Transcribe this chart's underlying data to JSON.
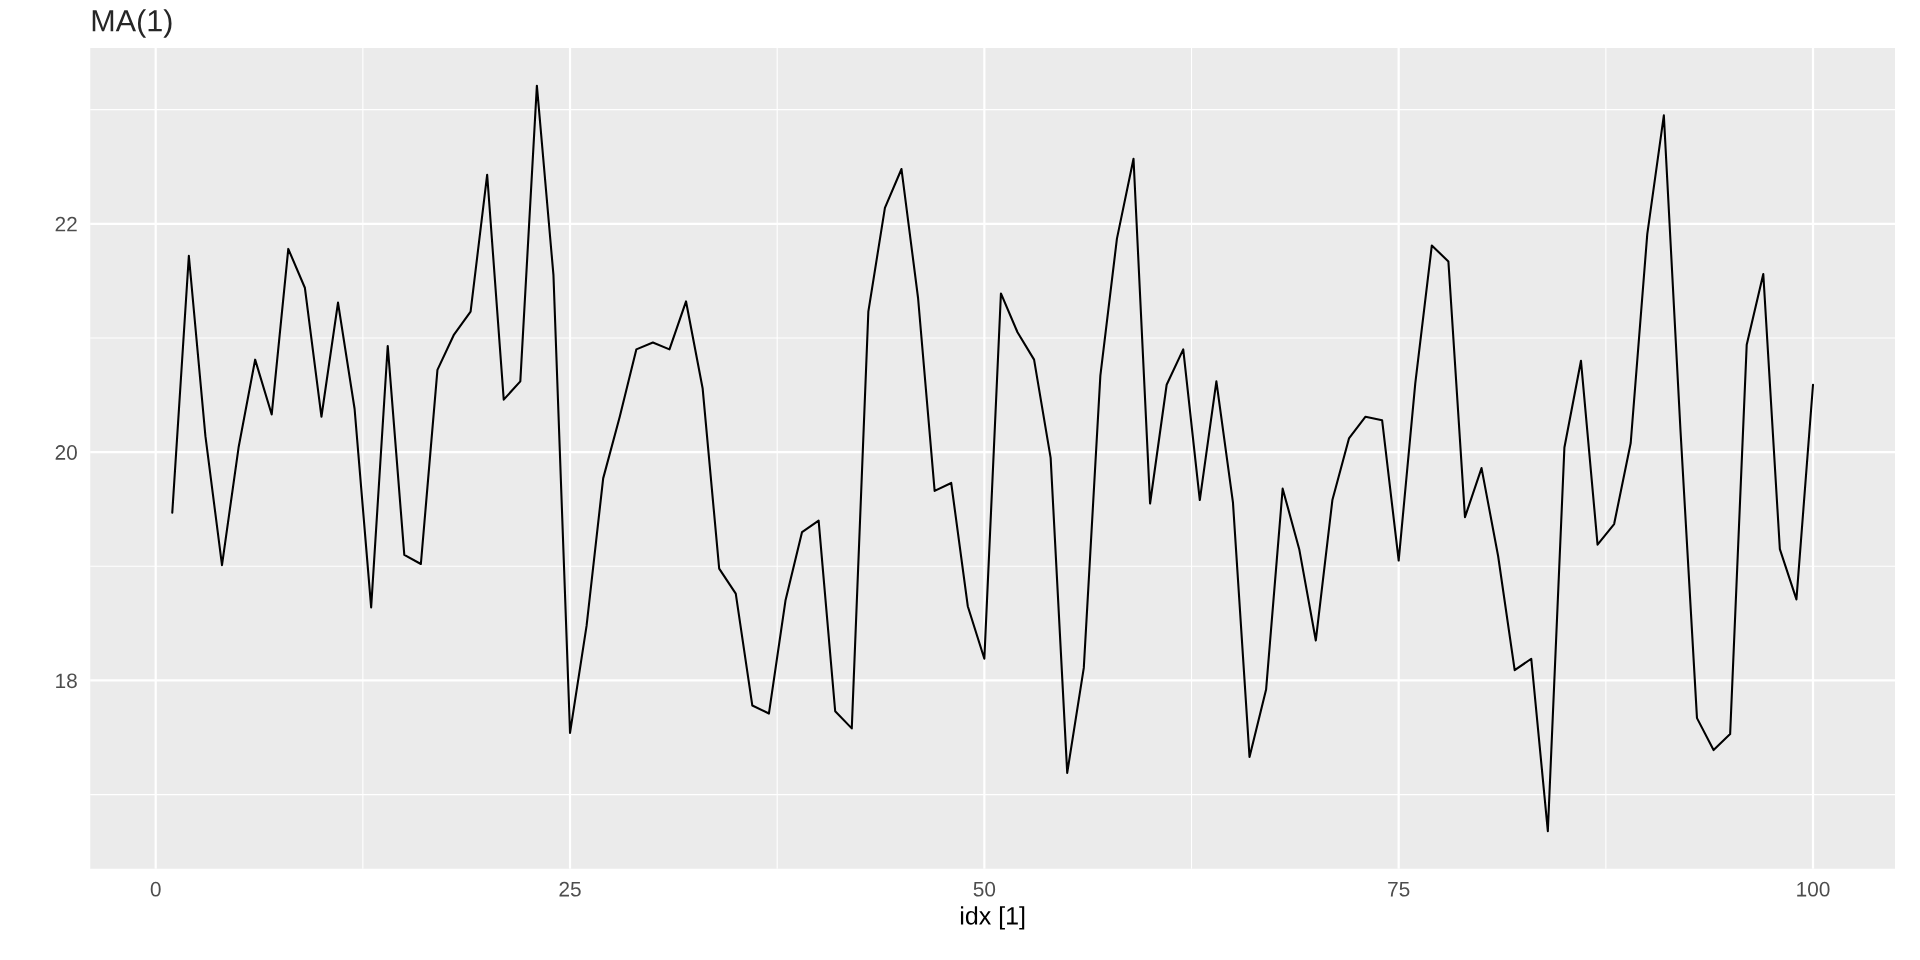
{
  "chart_data": {
    "type": "line",
    "title": "MA(1)",
    "xlabel": "idx [1]",
    "x": [
      1,
      2,
      3,
      4,
      5,
      6,
      7,
      8,
      9,
      10,
      11,
      12,
      13,
      14,
      15,
      16,
      17,
      18,
      19,
      20,
      21,
      22,
      23,
      24,
      25,
      26,
      27,
      28,
      29,
      30,
      31,
      32,
      33,
      34,
      35,
      36,
      37,
      38,
      39,
      40,
      41,
      42,
      43,
      44,
      45,
      46,
      47,
      48,
      49,
      50,
      51,
      52,
      53,
      54,
      55,
      56,
      57,
      58,
      59,
      60,
      61,
      62,
      63,
      64,
      65,
      66,
      67,
      68,
      69,
      70,
      71,
      72,
      73,
      74,
      75,
      76,
      77,
      78,
      79,
      80,
      81,
      82,
      83,
      84,
      85,
      86,
      87,
      88,
      89,
      90,
      91,
      92,
      93,
      94,
      95,
      96,
      97,
      98,
      99,
      100
    ],
    "series": [
      {
        "color": "#000000",
        "values": [
          19.47,
          21.72,
          20.14,
          19.01,
          20.04,
          20.81,
          20.33,
          21.78,
          21.44,
          20.31,
          21.31,
          20.38,
          18.64,
          20.93,
          19.1,
          19.02,
          20.72,
          21.03,
          21.23,
          22.43,
          20.46,
          20.62,
          23.21,
          21.55,
          17.54,
          18.48,
          19.77,
          20.31,
          20.9,
          20.96,
          20.9,
          21.32,
          20.56,
          18.98,
          18.76,
          17.78,
          17.71,
          18.7,
          19.3,
          19.4,
          17.73,
          17.58,
          21.23,
          22.14,
          22.48,
          21.35,
          19.66,
          19.73,
          18.65,
          18.19,
          21.39,
          21.05,
          20.81,
          19.95,
          17.19,
          18.11,
          20.67,
          21.87,
          22.57,
          19.55,
          20.59,
          20.9,
          19.58,
          20.62,
          19.56,
          17.33,
          17.92,
          19.68,
          19.15,
          18.35,
          19.58,
          20.12,
          20.31,
          20.28,
          19.05,
          20.6,
          21.81,
          21.67,
          19.43,
          19.86,
          19.09,
          18.09,
          18.19,
          16.68,
          20.04,
          20.8,
          19.19,
          19.37,
          20.08,
          21.91,
          22.95,
          20.2,
          17.67,
          17.39,
          17.53,
          20.94,
          21.56,
          19.15,
          18.71,
          20.59
        ]
      }
    ],
    "xlim": [
      -3.95,
      104.95
    ],
    "ylim": [
      16.35,
      23.54
    ],
    "xticks": [
      0,
      25,
      50,
      75,
      100
    ],
    "yticks": [
      18,
      20,
      22
    ],
    "grid": true,
    "legend": false,
    "marker": "none",
    "line_style": "solid"
  }
}
